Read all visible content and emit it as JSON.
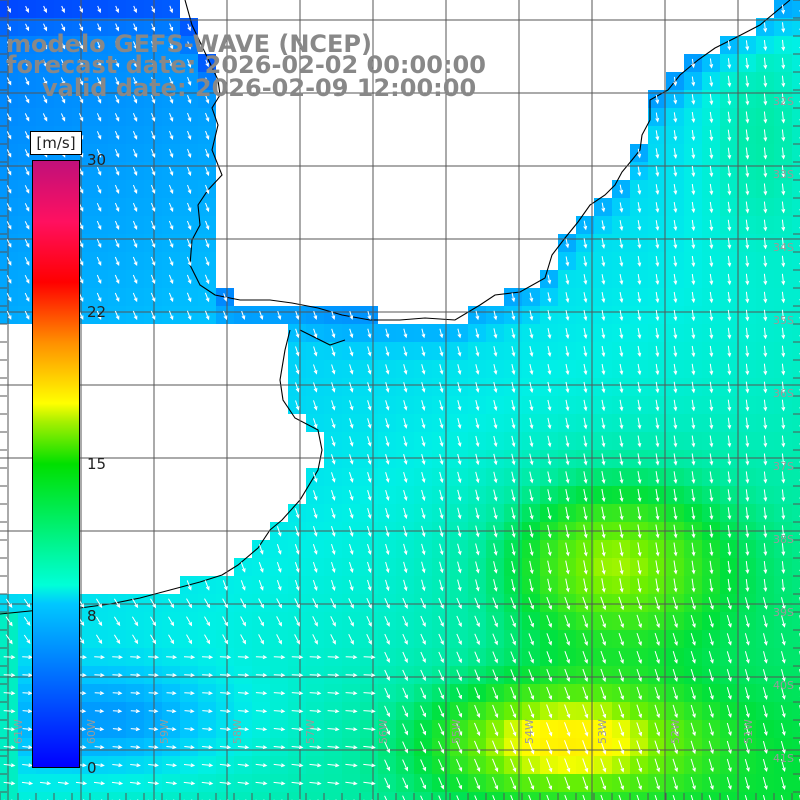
{
  "title": {
    "model": "modelo GEFS-WAVE (NCEP)",
    "forecast": "forecast date: 2026-02-02 00:00:00",
    "valid": "valid date: 2026-02-09 12:00:00"
  },
  "colorbar": {
    "units": "[m/s]",
    "ticks": [
      "30",
      "22",
      "15",
      "8",
      "0"
    ],
    "range": [
      0,
      30
    ],
    "colors": [
      "#0000ff",
      "#00c8ff",
      "#00ffd8",
      "#00e000",
      "#ffff00",
      "#ff9000",
      "#ff0000",
      "#c0107a"
    ]
  },
  "latitude_labels": [
    "32S",
    "33S",
    "34S",
    "35S",
    "36S",
    "37S",
    "38S",
    "39S",
    "40S",
    "41S"
  ],
  "longitude_labels": [
    "61W",
    "60W",
    "59W",
    "58W",
    "57W",
    "56W",
    "55W",
    "54W",
    "53W",
    "52W",
    "51W"
  ],
  "colors": {
    "land": "#ffffff",
    "coast": "#000000",
    "grid": "#555555",
    "arrows": "#ffffff",
    "title": "#888888"
  }
}
